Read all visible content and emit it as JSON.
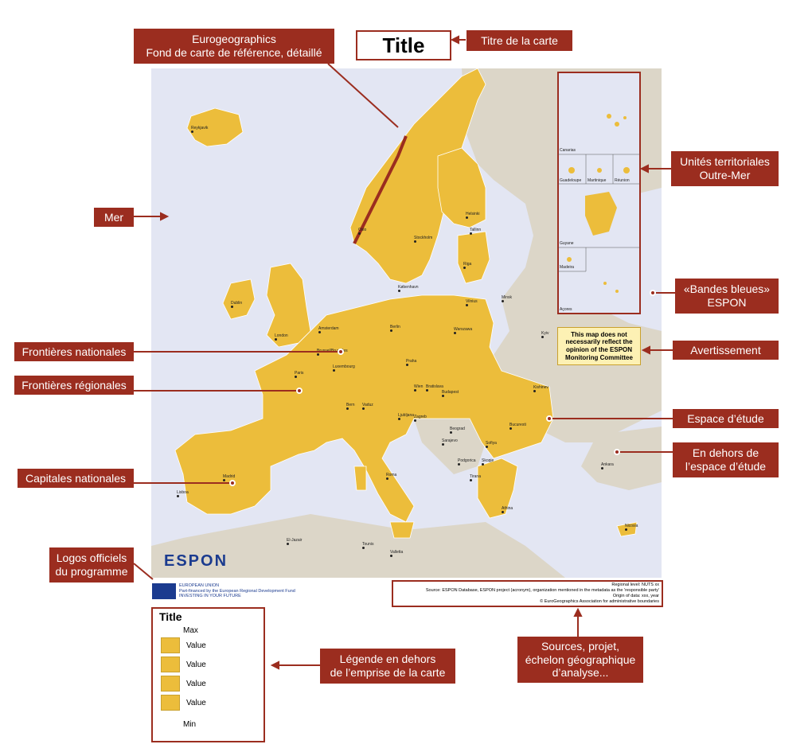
{
  "map_title": "Title",
  "annotations": {
    "background_map": [
      "Eurogeographics",
      "Fond de carte de référence, détaillé"
    ],
    "map_title": "Titre de la carte",
    "sea": "Mer",
    "outermost": [
      "Unités territoriales",
      "Outre-Mer"
    ],
    "blue_bands": [
      "«Bandes bleues»",
      "ESPON"
    ],
    "national_borders": "Frontières nationales",
    "disclaimer": "Avertissement",
    "regional_borders": "Frontières régionales",
    "study_area": "Espace d’étude",
    "outside_study": [
      "En dehors de",
      "l’espace d’étude"
    ],
    "capitals": "Capitales nationales",
    "logos": [
      "Logos officiels",
      "du programme"
    ],
    "sources": [
      "Sources, projet,",
      "échelon géographique",
      "d’analyse..."
    ],
    "legend": [
      "Légende en dehors",
      "de l’emprise de la carte"
    ]
  },
  "disclaimer_text": "This map does not necessarily reflect the opinion of the ESPON Monitoring Committee",
  "inset_labels": [
    "Canarias",
    "Guadeloupe",
    "Martinique",
    "Réunion",
    "Guyane",
    "Madeira",
    "Açores"
  ],
  "cities": [
    "Reykjavik",
    "Oslo",
    "Helsinki",
    "Tallinn",
    "Stockholm",
    "Riga",
    "København",
    "Vilnius",
    "Minsk",
    "Dublin",
    "London",
    "Amsterdam",
    "Berlin",
    "Warszawa",
    "Brussel/Bruxelles",
    "Luxembourg",
    "Kyiv",
    "Praha",
    "Paris",
    "Wien",
    "Bratislava",
    "Budapest",
    "Kishinev",
    "Bern",
    "Vaduz",
    "Ljubljana",
    "Zagreb",
    "Beograd",
    "Bucuresti",
    "Sarajevo",
    "Podgorica",
    "Skopje",
    "Sofiya",
    "Madrid",
    "Roma",
    "Tirana",
    "Lisboa",
    "Ankara",
    "Athina",
    "El-Jazair",
    "Tounis",
    "Valletta",
    "Nicosia"
  ],
  "logo": {
    "espon": "ESPON"
  },
  "eu_text": [
    "EUROPEAN UNION",
    "Part-financed by the European Regional Development Fund",
    "INVESTING IN YOUR FUTURE"
  ],
  "sources_text": [
    "Regional level: NUTS xx",
    "Source: ESPON Database, ESPON project (acronym), organization mentioned in the metadata as the 'responsible party'",
    "Origin of data: xxx, year",
    "© EuroGeographics Association for administrative boundaries"
  ],
  "legend": {
    "title": "Title",
    "rows": [
      "Max",
      "Value",
      "Value",
      "Value",
      "Value",
      "Min"
    ]
  },
  "colors": {
    "study_area": "#ecbd3b",
    "outside": "#dcd6c8",
    "sea": "#e3e6f3",
    "band": "#283580",
    "annotation": "#9b2d1f"
  }
}
